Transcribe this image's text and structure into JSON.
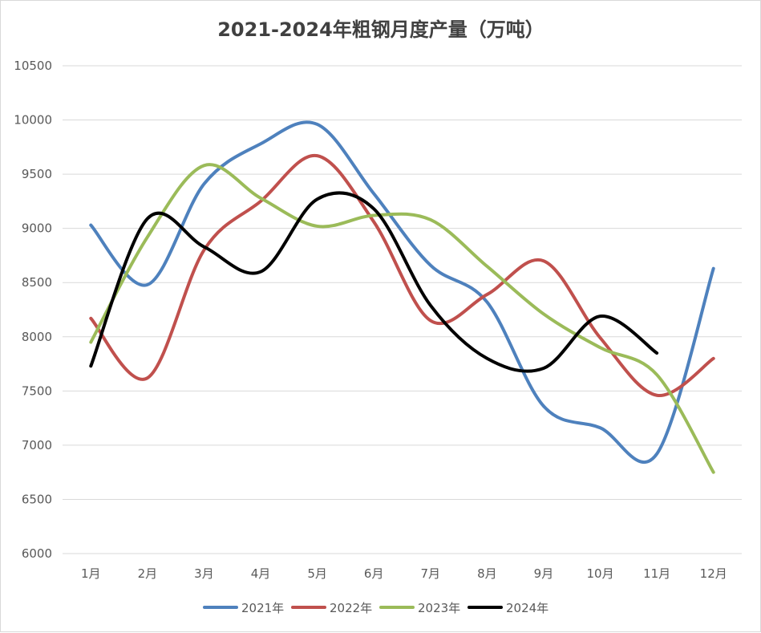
{
  "chart_data": {
    "type": "line",
    "title": "2021-2024年粗钢月度产量（万吨）",
    "categories": [
      "1月",
      "2月",
      "3月",
      "4月",
      "5月",
      "6月",
      "7月",
      "8月",
      "9月",
      "10月",
      "11月",
      "12月"
    ],
    "ylim": [
      6000,
      10500
    ],
    "yticks": [
      6000,
      6500,
      7000,
      7500,
      8000,
      8500,
      9000,
      9500,
      10000,
      10500
    ],
    "grid": "horizontal",
    "legend_position": "bottom",
    "series": [
      {
        "name": "2021年",
        "color": "#4e81bd",
        "values": [
          9030,
          8480,
          9410,
          9780,
          9960,
          9320,
          8660,
          8320,
          7360,
          7160,
          6920,
          8630
        ]
      },
      {
        "name": "2022年",
        "color": "#c0504d",
        "values": [
          8170,
          7620,
          8800,
          9250,
          9670,
          9060,
          8150,
          8390,
          8700,
          7990,
          7460,
          7800
        ]
      },
      {
        "name": "2023年",
        "color": "#9bbb59",
        "values": [
          7950,
          8920,
          9580,
          9280,
          9020,
          9120,
          9080,
          8650,
          8210,
          7900,
          7650,
          6750
        ]
      },
      {
        "name": "2024年",
        "color": "#000000",
        "values": [
          7730,
          9090,
          8830,
          8600,
          9270,
          9180,
          8290,
          7800,
          7710,
          8190,
          7850,
          null
        ]
      }
    ]
  }
}
